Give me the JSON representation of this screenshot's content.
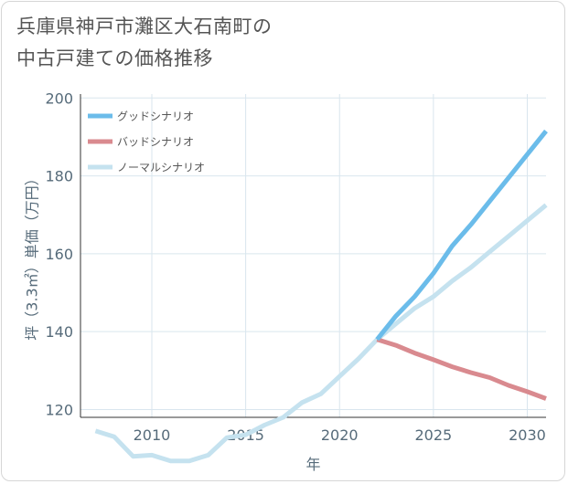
{
  "title": {
    "line1": "兵庫県神戸市灘区大石南町の",
    "line2": "中古戸建ての価格推移"
  },
  "chart_data": {
    "type": "line",
    "xlabel": "年",
    "ylabel": "坪（3.3㎡）単価（万円）",
    "xlim": [
      2006.2,
      2031
    ],
    "ylim": [
      118,
      201
    ],
    "x_ticks": [
      2010,
      2015,
      2020,
      2025,
      2030
    ],
    "y_ticks": [
      120,
      140,
      160,
      180,
      200
    ],
    "grid": true,
    "legend_position": "top-left",
    "series": [
      {
        "name": "グッドシナリオ",
        "color": "#6bbcea",
        "x": [
          2022,
          2023,
          2024,
          2025,
          2026,
          2027,
          2028,
          2029,
          2030,
          2031
        ],
        "values": [
          138,
          144,
          149,
          155,
          162,
          167.5,
          173.5,
          179.5,
          185.5,
          191.5
        ]
      },
      {
        "name": "バッドシナリオ",
        "color": "#d98a8f",
        "x": [
          2022,
          2023,
          2024,
          2025,
          2026,
          2027,
          2028,
          2029,
          2030,
          2031
        ],
        "values": [
          138,
          136.5,
          134.5,
          132.8,
          131,
          129.5,
          128.2,
          126.2,
          124.6,
          122.8
        ]
      },
      {
        "name": "ノーマルシナリオ",
        "color": "#c5e2ef",
        "x": [
          2007,
          2008,
          2009,
          2010,
          2011,
          2012,
          2013,
          2014,
          2015,
          2016,
          2017,
          2018,
          2019,
          2020,
          2021,
          2022,
          2023,
          2024,
          2025,
          2026,
          2027,
          2028,
          2029,
          2030,
          2031
        ],
        "values": [
          114.5,
          113,
          108,
          108.3,
          106.8,
          106.8,
          108.3,
          112.8,
          113.5,
          116,
          118,
          121.8,
          124,
          128.5,
          133,
          138,
          142,
          146,
          149,
          153,
          156.5,
          160.5,
          164.5,
          168.5,
          172.5
        ]
      }
    ]
  }
}
